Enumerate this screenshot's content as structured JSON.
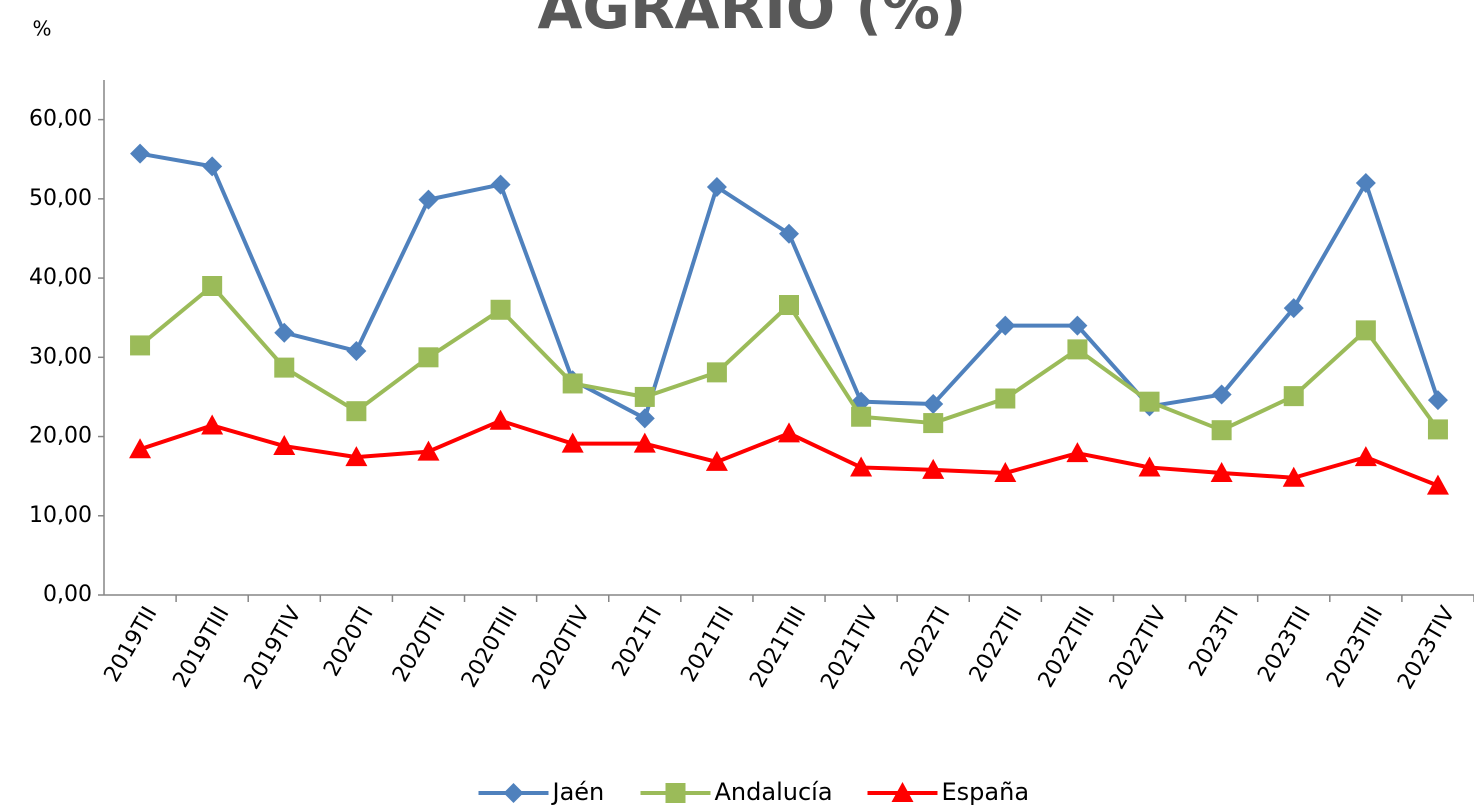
{
  "chart_data": {
    "type": "line",
    "title": "AGRARIO (%)",
    "y_label": "%",
    "categories": [
      "2019TII",
      "2019TIII",
      "2019TIV",
      "2020TI",
      "2020TII",
      "2020TIII",
      "2020TIV",
      "2021TI",
      "2021TII",
      "2021TIII",
      "2021TIV",
      "2022TI",
      "2022TII",
      "2022TIII",
      "2022TIV",
      "2023TI",
      "2023TII",
      "2023TIII",
      "2023TIV"
    ],
    "series": [
      {
        "name": "Jaén",
        "color": "#4f81bd",
        "marker": "diamond",
        "values": [
          55.7,
          54.1,
          33.1,
          30.8,
          49.9,
          51.8,
          27.1,
          22.3,
          51.5,
          45.6,
          24.4,
          24.1,
          34.0,
          34.0,
          23.8,
          25.3,
          36.2,
          52.0,
          24.6
        ]
      },
      {
        "name": "Andalucía",
        "color": "#9bbb59",
        "marker": "square",
        "values": [
          31.5,
          39.0,
          28.7,
          23.2,
          30.0,
          36.0,
          26.7,
          25.0,
          28.1,
          36.6,
          22.5,
          21.7,
          24.8,
          31.0,
          24.4,
          20.8,
          25.1,
          33.4,
          20.9
        ]
      },
      {
        "name": "España",
        "color": "#ff0000",
        "marker": "triangle",
        "values": [
          18.4,
          21.4,
          18.8,
          17.4,
          18.1,
          22.0,
          19.1,
          19.1,
          16.8,
          20.4,
          16.1,
          15.8,
          15.4,
          17.9,
          16.1,
          15.4,
          14.8,
          17.4,
          13.8
        ]
      }
    ],
    "ylim": [
      0,
      65
    ],
    "yticks": [
      {
        "value": 0,
        "label": "0,00"
      },
      {
        "value": 10,
        "label": "10,00"
      },
      {
        "value": 20,
        "label": "20,00"
      },
      {
        "value": 30,
        "label": "30,00"
      },
      {
        "value": 40,
        "label": "40,00"
      },
      {
        "value": 50,
        "label": "50,00"
      },
      {
        "value": 60,
        "label": "60,00"
      }
    ],
    "legend": "bottom"
  }
}
